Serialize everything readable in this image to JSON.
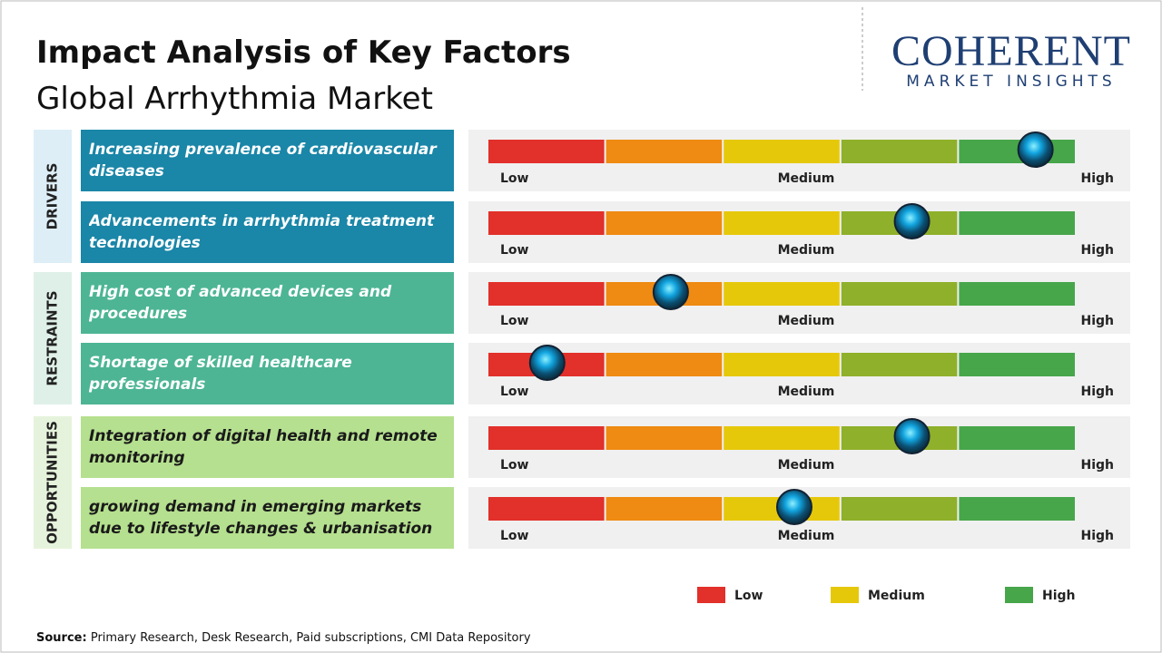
{
  "title": "Impact Analysis of Key Factors",
  "subtitle": "Global Arrhythmia Market",
  "logo": {
    "name": "COHERENT",
    "tagline": "MARKET INSIGHTS"
  },
  "scale_labels": [
    "Low",
    "Medium",
    "High"
  ],
  "groups": [
    {
      "name": "DRIVERS",
      "box_color": "#ddeef7",
      "factor_color": "#1a86a8",
      "text_color": "#ffffff",
      "factors": [
        {
          "text": "Increasing prevalence of cardiovascular diseases",
          "impact": 0.93
        },
        {
          "text": "Advancements in arrhythmia treatment technologies",
          "impact": 0.72
        }
      ]
    },
    {
      "name": "RESTRAINTS",
      "box_color": "#dff0e8",
      "factor_color": "#4db594",
      "text_color": "#ffffff",
      "factors": [
        {
          "text": "High cost of advanced devices and procedures",
          "impact": 0.31
        },
        {
          "text": "Shortage of skilled healthcare professionals",
          "impact": 0.1
        }
      ]
    },
    {
      "name": "OPPORTUNITIES",
      "box_color": "#e6f3dc",
      "factor_color": "#b5e08f",
      "text_color": "#1a1a1a",
      "factors": [
        {
          "text": "Integration of digital health and remote monitoring",
          "impact": 0.72
        },
        {
          "text": "growing demand in emerging markets due to lifestyle changes & urbanisation",
          "impact": 0.52
        }
      ]
    }
  ],
  "bar_colors": [
    "#e2302a",
    "#ef8a12",
    "#e6c80b",
    "#8fb02a",
    "#47a64a"
  ],
  "legend": [
    {
      "label": "Low",
      "color": "#e2302a"
    },
    {
      "label": "Medium",
      "color": "#e6c80b"
    },
    {
      "label": "High",
      "color": "#47a64a"
    }
  ],
  "source": {
    "label": "Source:",
    "text": "Primary Research, Desk Research, Paid subscriptions, CMI Data Repository"
  }
}
